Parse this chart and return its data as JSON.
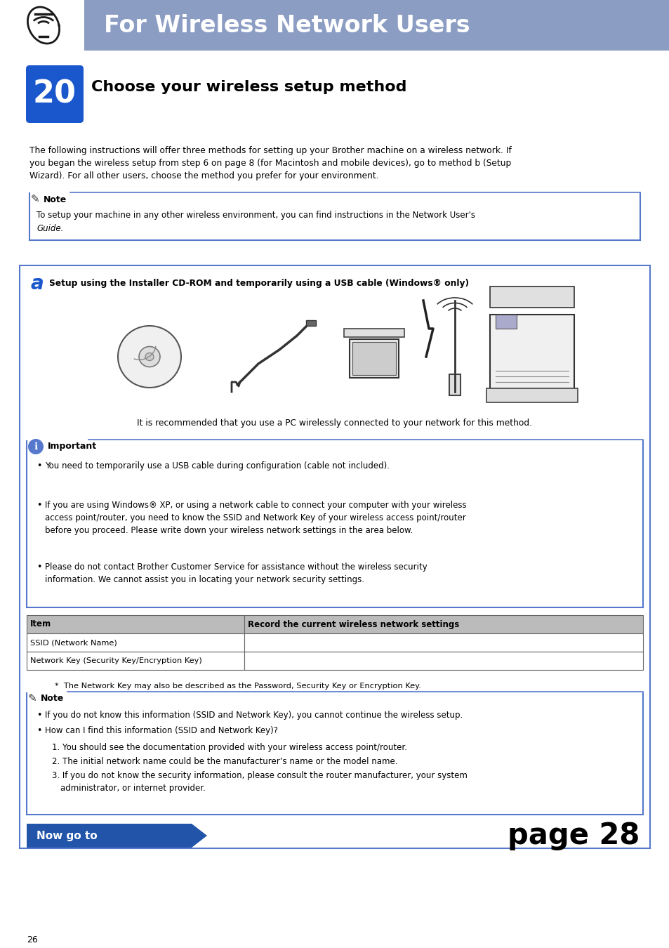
{
  "header_bg_color": "#8B9DC3",
  "header_text": "For Wireless Network Users",
  "header_text_color": "#FFFFFF",
  "header_font_size": 24,
  "step_number": "20",
  "step_bg_color": "#1A56CC",
  "step_text_color": "#FFFFFF",
  "step_title": "Choose your wireless setup method",
  "step_title_font_size": 16,
  "body_text_line1": "The following instructions will offer three methods for setting up your Brother machine on a wireless network. If",
  "body_text_line2": "you began the wireless setup from step 6 on page 8 (for Macintosh and mobile devices), go to method b (Setup",
  "body_text_line3": "Wizard). For all other users, choose the method you prefer for your environment.",
  "note_text_line1": "To setup your machine in any other wireless environment, you can find instructions in the Network User's",
  "note_text_line2": "Guide.",
  "note_border_color": "#5577CC",
  "section_a_title": "Setup using the Installer CD-ROM and temporarily using a USB cable (Windows® only)",
  "section_a_label": "a",
  "section_a_label_color": "#1A56CC",
  "important_bullet1": "You need to temporarily use a USB cable during configuration (cable not included).",
  "important_bullet2a": "If you are using Windows® XP, or using a network cable to connect your computer with your wireless",
  "important_bullet2b": "access point/router, you need to know the SSID and Network Key of your wireless access point/router",
  "important_bullet2c": "before you proceed. Please write down your wireless network settings in the area below.",
  "important_bullet3a": "Please do not contact Brother Customer Service for assistance without the wireless security",
  "important_bullet3b": "information. We cannot assist you in locating your network security settings.",
  "table_header1": "Item",
  "table_header2": "Record the current wireless network settings",
  "table_row1": "SSID (Network Name)",
  "table_row2": "Network Key (Security Key/Encryption Key)",
  "table_note": "*  The Network Key may also be described as the Password, Security Key or Encryption Key.",
  "note2_b1": "If you do not know this information (SSID and Network Key), you cannot continue the wireless setup.",
  "note2_b2": "How can I find this information (SSID and Network Key)?",
  "note2_b3": "1. You should see the documentation provided with your wireless access point/router.",
  "note2_b4": "2. The initial network name could be the manufacturer’s name or the model name.",
  "note2_b5a": "3. If you do not know the security information, please consult the router manufacturer, your system",
  "note2_b5b": "   administrator, or internet provider.",
  "now_go_to_text": "Now go to",
  "now_go_to_bg": "#2255AA",
  "page_ref": "page 28",
  "page_number": "26",
  "bg_color": "#FFFFFF",
  "body_text_color": "#000000",
  "section_border_color": "#5577CC",
  "table_header_bg": "#AAAAAA",
  "table_header_text_color": "#000000",
  "table_border_color": "#888888",
  "rec_text": "It is recommended that you use a PC wirelessly connected to your network for this method."
}
